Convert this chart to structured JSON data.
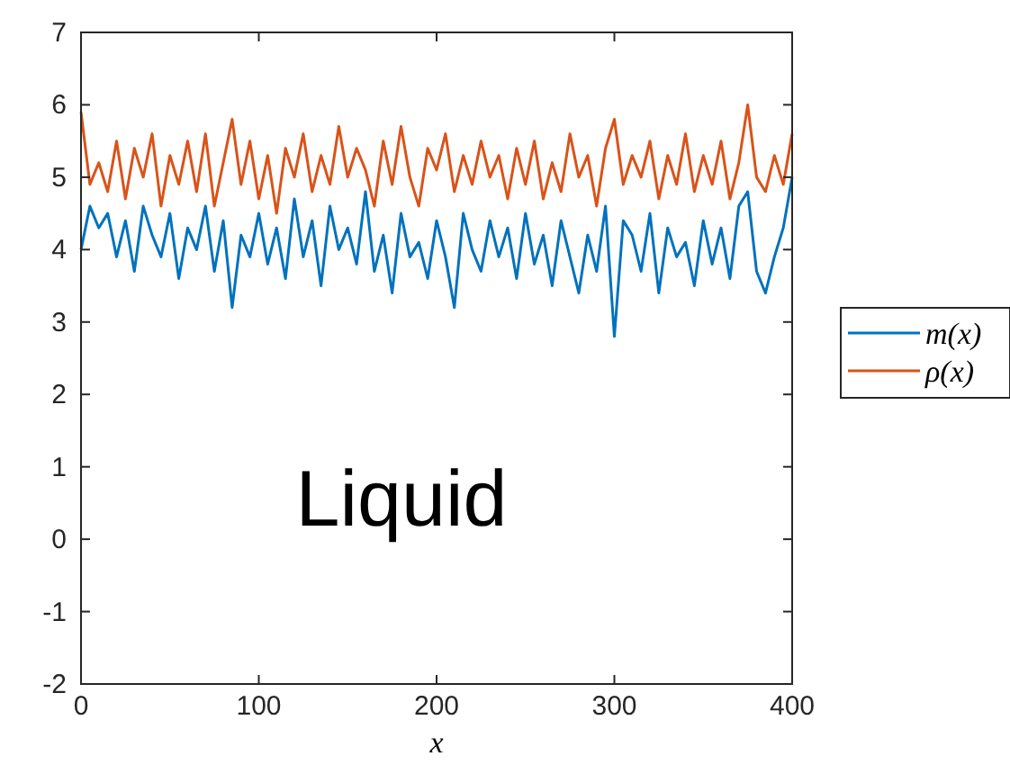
{
  "chart_data": {
    "type": "line",
    "xlabel": "x",
    "annotations": [
      "Liquid"
    ],
    "legend": "right",
    "grid": false,
    "xlim": [
      0,
      400
    ],
    "ylim": [
      -2,
      7
    ],
    "xticks": [
      0,
      100,
      200,
      300,
      400
    ],
    "yticks": [
      -2,
      -1,
      0,
      1,
      2,
      3,
      4,
      5,
      6,
      7
    ],
    "x": [
      0,
      5,
      10,
      15,
      20,
      25,
      30,
      35,
      40,
      45,
      50,
      55,
      60,
      65,
      70,
      75,
      80,
      85,
      90,
      95,
      100,
      105,
      110,
      115,
      120,
      125,
      130,
      135,
      140,
      145,
      150,
      155,
      160,
      165,
      170,
      175,
      180,
      185,
      190,
      195,
      200,
      205,
      210,
      215,
      220,
      225,
      230,
      235,
      240,
      245,
      250,
      255,
      260,
      265,
      270,
      275,
      280,
      285,
      290,
      295,
      300,
      305,
      310,
      315,
      320,
      325,
      330,
      335,
      340,
      345,
      350,
      355,
      360,
      365,
      370,
      375,
      380,
      385,
      390,
      395,
      400
    ],
    "series": [
      {
        "name": "m(x)",
        "color": "#0072bd",
        "values": [
          4.0,
          4.6,
          4.3,
          4.5,
          3.9,
          4.4,
          3.7,
          4.6,
          4.2,
          3.9,
          4.5,
          3.6,
          4.3,
          4.0,
          4.6,
          3.7,
          4.4,
          3.2,
          4.2,
          3.9,
          4.5,
          3.8,
          4.3,
          3.6,
          4.7,
          3.9,
          4.4,
          3.5,
          4.6,
          4.0,
          4.3,
          3.8,
          4.8,
          3.7,
          4.2,
          3.4,
          4.5,
          3.9,
          4.1,
          3.6,
          4.4,
          3.9,
          3.2,
          4.5,
          4.0,
          3.7,
          4.4,
          3.9,
          4.3,
          3.6,
          4.5,
          3.8,
          4.2,
          3.5,
          4.4,
          3.9,
          3.4,
          4.2,
          3.7,
          4.6,
          2.8,
          4.4,
          4.2,
          3.7,
          4.5,
          3.4,
          4.3,
          3.9,
          4.1,
          3.5,
          4.4,
          3.8,
          4.3,
          3.6,
          4.6,
          4.8,
          3.7,
          3.4,
          3.9,
          4.3,
          5.0
        ]
      },
      {
        "name": "ρ(x)",
        "color": "#d95319",
        "values": [
          5.9,
          4.9,
          5.2,
          4.8,
          5.5,
          4.7,
          5.4,
          5.0,
          5.6,
          4.6,
          5.3,
          4.9,
          5.5,
          4.8,
          5.6,
          4.6,
          5.2,
          5.8,
          4.9,
          5.5,
          4.7,
          5.3,
          4.5,
          5.4,
          5.0,
          5.6,
          4.8,
          5.3,
          4.9,
          5.7,
          5.0,
          5.4,
          5.1,
          4.6,
          5.5,
          4.9,
          5.7,
          5.0,
          4.6,
          5.4,
          5.1,
          5.6,
          4.8,
          5.3,
          4.9,
          5.5,
          5.0,
          5.3,
          4.7,
          5.4,
          4.9,
          5.5,
          4.7,
          5.2,
          4.8,
          5.6,
          5.0,
          5.3,
          4.6,
          5.4,
          5.8,
          4.9,
          5.3,
          5.0,
          5.5,
          4.7,
          5.3,
          4.9,
          5.6,
          4.8,
          5.3,
          4.9,
          5.5,
          4.7,
          5.2,
          6.0,
          5.0,
          4.8,
          5.3,
          4.9,
          5.6
        ]
      }
    ]
  }
}
